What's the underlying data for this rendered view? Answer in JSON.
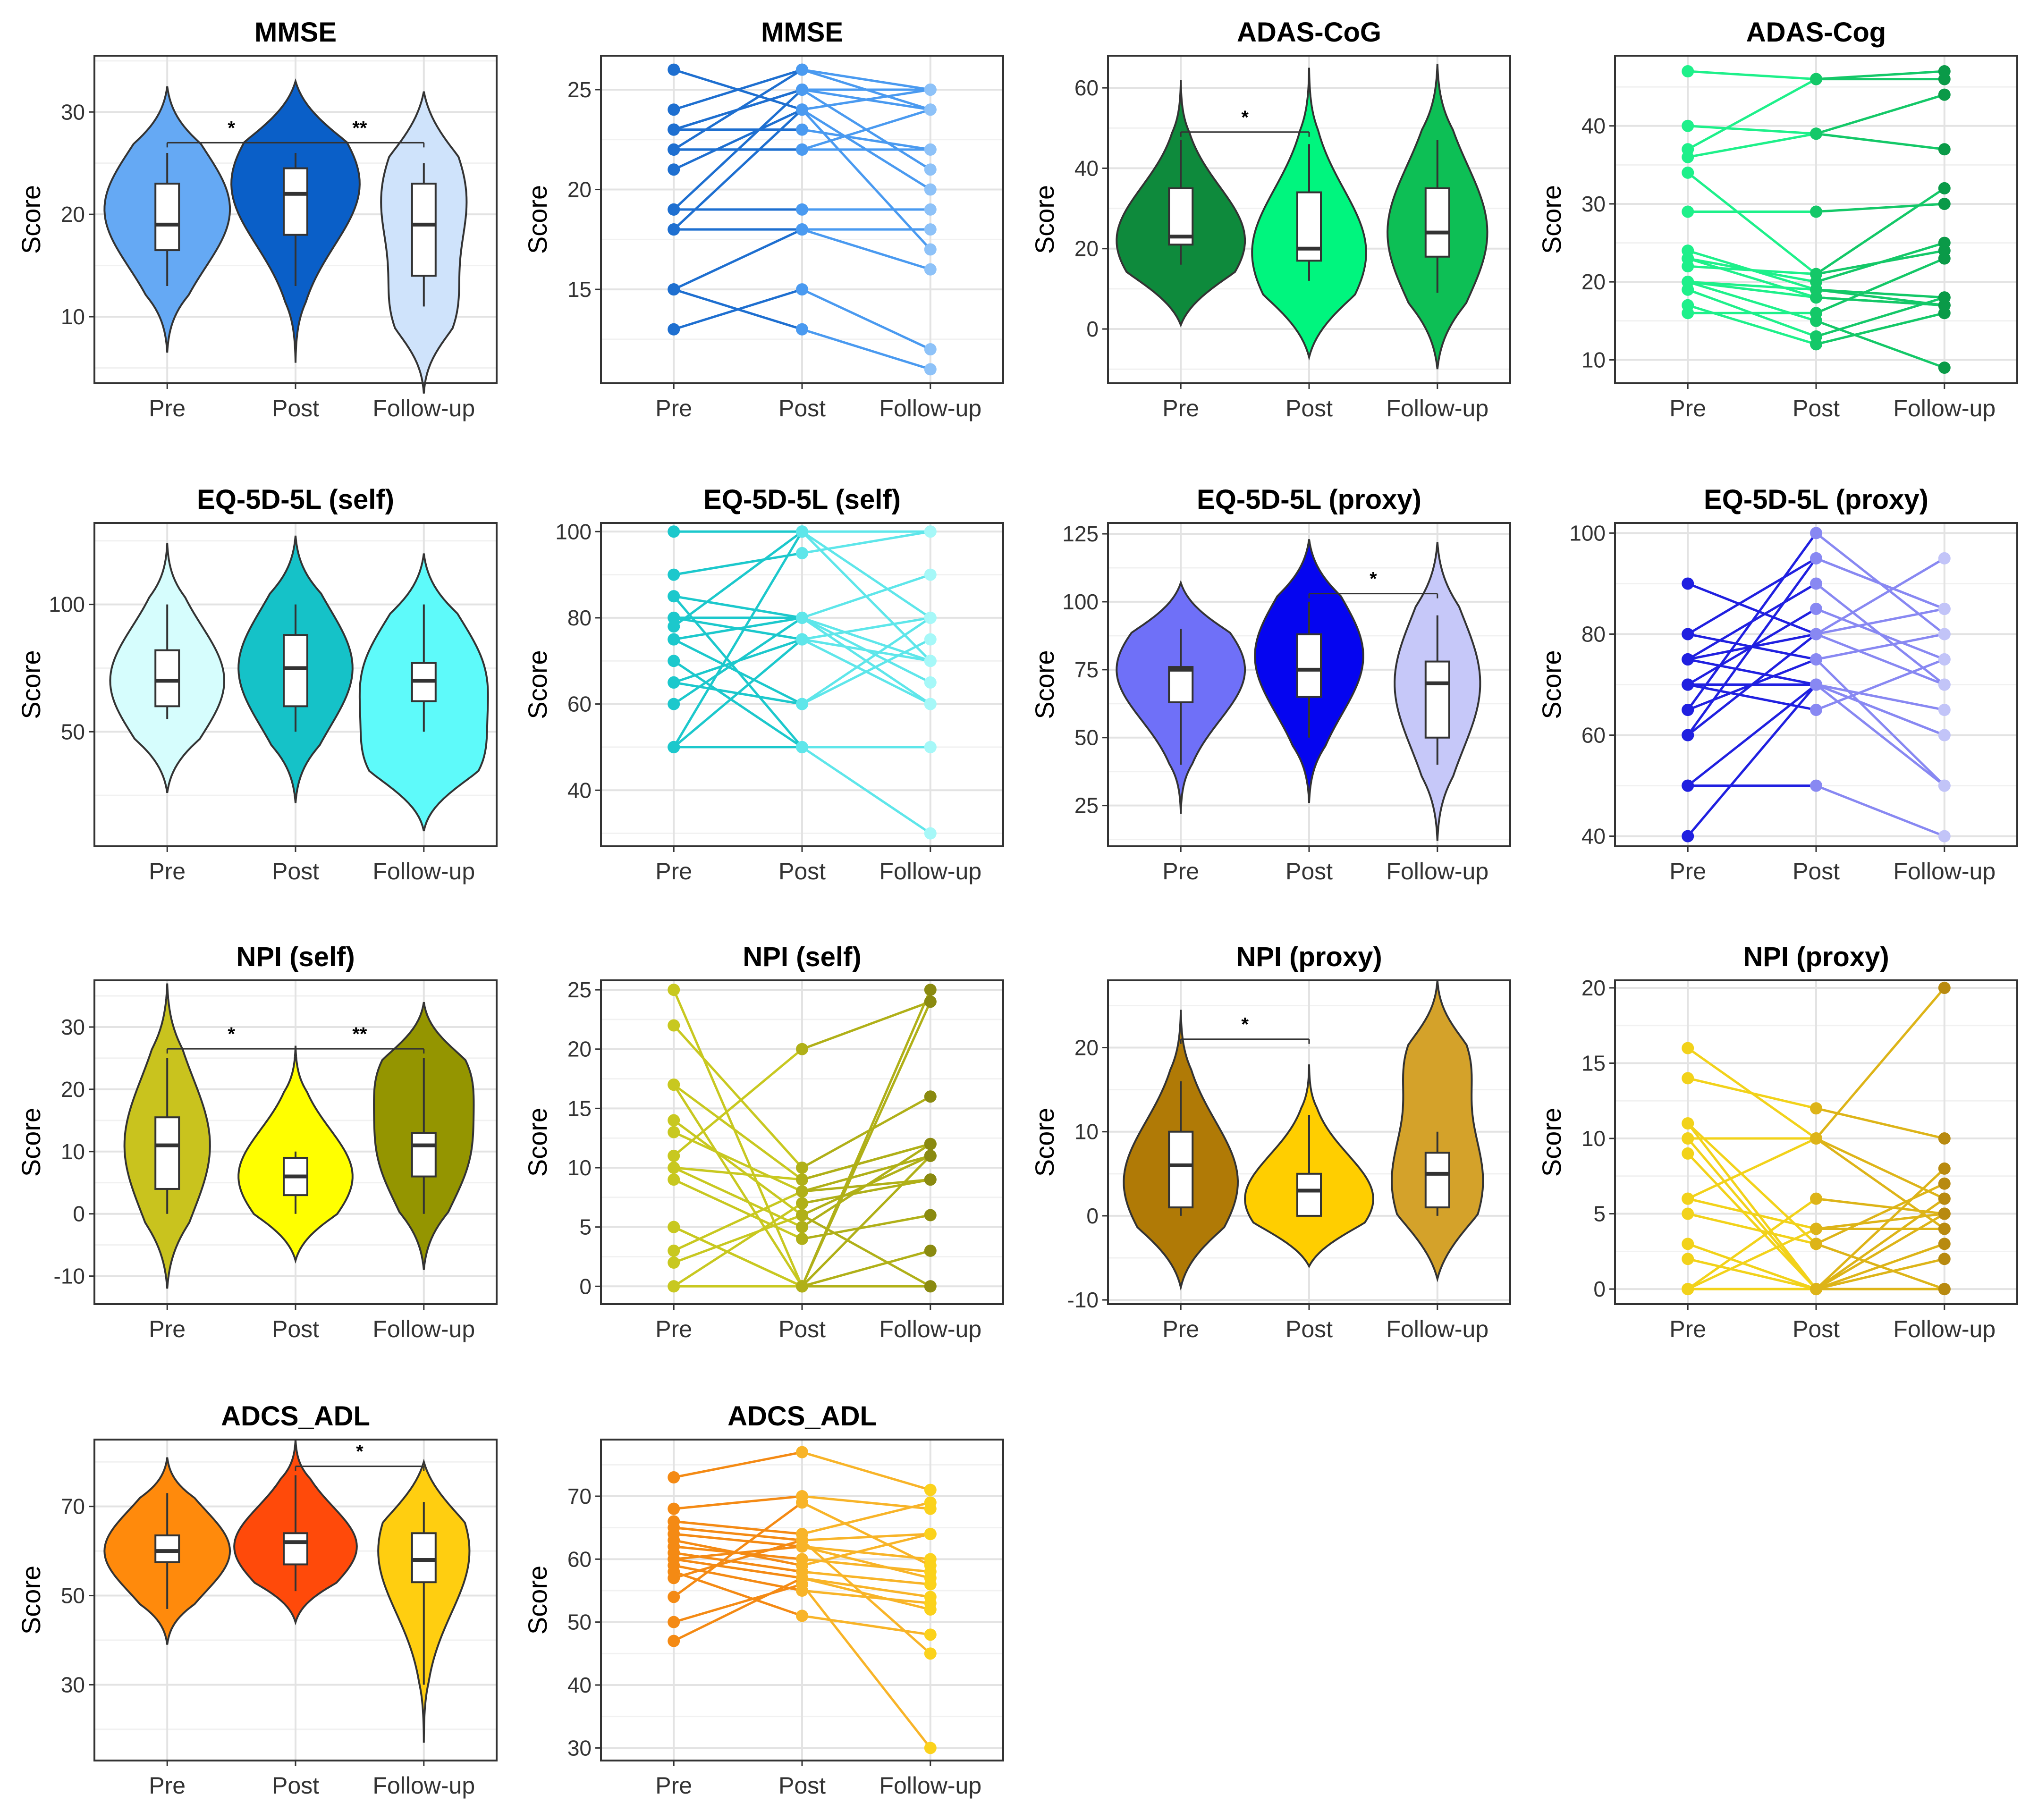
{
  "chart_data": [
    {
      "id": "mmse-violin",
      "type": "violin",
      "title": "MMSE",
      "ylabel": "Score",
      "categories": [
        "Pre",
        "Post",
        "Follow-up"
      ],
      "ylim": [
        3.5,
        35.5
      ],
      "yticks": [
        10,
        20,
        30
      ],
      "colors": [
        "#65A9F4",
        "#0A5FC8",
        "#CFE3FB"
      ],
      "groups": [
        {
          "min": 13,
          "q1": 16.5,
          "median": 19,
          "q3": 23,
          "max": 26,
          "lo": 6.5,
          "hi": 32.5,
          "modes": [
            20.5
          ],
          "w": 0.44
        },
        {
          "min": 13,
          "q1": 18,
          "median": 22,
          "q3": 24.5,
          "max": 26,
          "lo": 5.5,
          "hi": 33,
          "modes": [
            23
          ],
          "w": 0.45
        },
        {
          "min": 11,
          "q1": 14,
          "median": 19,
          "q3": 23,
          "max": 25,
          "lo": 2.5,
          "hi": 32,
          "modes": [
            21.5,
            10
          ],
          "w": 0.3
        }
      ],
      "signif": [
        {
          "from": 0,
          "to": 2,
          "y": 27,
          "labels": [
            {
              "text": "*",
              "at": 0.5
            },
            {
              "text": "**",
              "at": 1.5
            }
          ]
        }
      ]
    },
    {
      "id": "mmse-lines",
      "type": "line",
      "title": "MMSE",
      "ylabel": "Score",
      "categories": [
        "Pre",
        "Post",
        "Follow-up"
      ],
      "ylim": [
        10.3,
        26.7
      ],
      "yticks": [
        15,
        20,
        25
      ],
      "colors": [
        "#1E6FD0",
        "#4A9AF0",
        "#8EC2F8"
      ],
      "series": [
        [
          26,
          24,
          25
        ],
        [
          24,
          26,
          25
        ],
        [
          23,
          25,
          24
        ],
        [
          23,
          25,
          25
        ],
        [
          22,
          22,
          22
        ],
        [
          22,
          22,
          24
        ],
        [
          21,
          24,
          20
        ],
        [
          23,
          23,
          22
        ],
        [
          19,
          19,
          19
        ],
        [
          18,
          18,
          18
        ],
        [
          18,
          24,
          17
        ],
        [
          19,
          25,
          21
        ],
        [
          15,
          13,
          11
        ],
        [
          13,
          15,
          12
        ],
        [
          15,
          18,
          16
        ],
        [
          22,
          26,
          24
        ]
      ]
    },
    {
      "id": "adas-violin",
      "type": "violin",
      "title": "ADAS-CoG",
      "ylabel": "Score",
      "categories": [
        "Pre",
        "Post",
        "Follow-up"
      ],
      "ylim": [
        -13.5,
        68
      ],
      "yticks": [
        0,
        20,
        40,
        60
      ],
      "colors": [
        "#0E8A3C",
        "#00F57E",
        "#0DBF55"
      ],
      "groups": [
        {
          "min": 16,
          "q1": 21,
          "median": 23,
          "q3": 35,
          "max": 47,
          "lo": 1,
          "hi": 62,
          "modes": [
            22
          ],
          "w": 0.45
        },
        {
          "min": 12,
          "q1": 17,
          "median": 20,
          "q3": 34,
          "max": 46,
          "lo": -7,
          "hi": 65,
          "modes": [
            19
          ],
          "w": 0.4
        },
        {
          "min": 9,
          "q1": 18,
          "median": 24,
          "q3": 35,
          "max": 47,
          "lo": -10,
          "hi": 66,
          "modes": [
            24
          ],
          "w": 0.35
        }
      ],
      "signif": [
        {
          "from": 0,
          "to": 1,
          "y": 49,
          "labels": [
            {
              "text": "*",
              "at": 0.5
            }
          ]
        }
      ]
    },
    {
      "id": "adas-lines",
      "type": "line",
      "title": "ADAS-Cog",
      "ylabel": "Score",
      "categories": [
        "Pre",
        "Post",
        "Follow-up"
      ],
      "ylim": [
        7,
        49
      ],
      "yticks": [
        10,
        20,
        30,
        40
      ],
      "colors": [
        "#1EF08A",
        "#14C868",
        "#0A9A48"
      ],
      "series": [
        [
          47,
          46,
          47
        ],
        [
          40,
          39,
          37
        ],
        [
          37,
          46,
          46
        ],
        [
          36,
          39,
          44
        ],
        [
          34,
          21,
          32
        ],
        [
          29,
          29,
          30
        ],
        [
          24,
          19,
          18
        ],
        [
          23,
          20,
          25
        ],
        [
          22,
          21,
          24
        ],
        [
          20,
          18,
          17
        ],
        [
          20,
          15,
          9
        ],
        [
          19,
          13,
          18
        ],
        [
          17,
          12,
          16
        ],
        [
          16,
          16,
          23
        ],
        [
          23,
          18,
          17
        ],
        [
          20,
          19,
          17
        ]
      ]
    },
    {
      "id": "eq-self-violin",
      "type": "violin",
      "title": "EQ-5D-5L (self)",
      "ylabel": "Score",
      "categories": [
        "Pre",
        "Post",
        "Follow-up"
      ],
      "ylim": [
        5,
        132
      ],
      "yticks": [
        50,
        100
      ],
      "colors": [
        "#D6FDFD",
        "#15C2C8",
        "#5EFAFA"
      ],
      "groups": [
        {
          "min": 55,
          "q1": 60,
          "median": 70,
          "q3": 82,
          "max": 100,
          "lo": 26,
          "hi": 124,
          "modes": [
            70
          ],
          "w": 0.4
        },
        {
          "min": 50,
          "q1": 60,
          "median": 75,
          "q3": 88,
          "max": 100,
          "lo": 22,
          "hi": 127,
          "modes": [
            75
          ],
          "w": 0.4
        },
        {
          "min": 50,
          "q1": 62,
          "median": 70,
          "q3": 77,
          "max": 100,
          "lo": 11,
          "hi": 120,
          "modes": [
            70,
            35
          ],
          "w": 0.45
        }
      ],
      "signif": []
    },
    {
      "id": "eq-self-lines",
      "type": "line",
      "title": "EQ-5D-5L (self)",
      "ylabel": "Score",
      "categories": [
        "Pre",
        "Post",
        "Follow-up"
      ],
      "ylim": [
        27,
        102
      ],
      "yticks": [
        40,
        60,
        80,
        100
      ],
      "colors": [
        "#1CC8CC",
        "#5EE6EA",
        "#A6F8F8"
      ],
      "series": [
        [
          100,
          100,
          100
        ],
        [
          90,
          95,
          100
        ],
        [
          85,
          80,
          90
        ],
        [
          80,
          75,
          80
        ],
        [
          78,
          100,
          70
        ],
        [
          75,
          80,
          60
        ],
        [
          70,
          50,
          50
        ],
        [
          65,
          60,
          75
        ],
        [
          60,
          80,
          65
        ],
        [
          50,
          100,
          80
        ],
        [
          50,
          50,
          30
        ],
        [
          50,
          75,
          70
        ],
        [
          65,
          75,
          60
        ],
        [
          85,
          50,
          50
        ],
        [
          80,
          80,
          70
        ],
        [
          75,
          60,
          80
        ]
      ]
    },
    {
      "id": "eq-proxy-violin",
      "type": "violin",
      "title": "EQ-5D-5L (proxy)",
      "ylabel": "Score",
      "categories": [
        "Pre",
        "Post",
        "Follow-up"
      ],
      "ylim": [
        10,
        129
      ],
      "yticks": [
        25,
        50,
        75,
        100,
        125
      ],
      "colors": [
        "#6F70F8",
        "#0505F0",
        "#C6C8F9"
      ],
      "groups": [
        {
          "min": 40,
          "q1": 63,
          "median": 75,
          "q3": 76,
          "max": 90,
          "lo": 22,
          "hi": 107,
          "modes": [
            75
          ],
          "w": 0.45
        },
        {
          "min": 50,
          "q1": 65,
          "median": 75,
          "q3": 88,
          "max": 100,
          "lo": 26,
          "hi": 123,
          "modes": [
            80
          ],
          "w": 0.38
        },
        {
          "min": 40,
          "q1": 50,
          "median": 70,
          "q3": 78,
          "max": 95,
          "lo": 12,
          "hi": 122,
          "modes": [
            70
          ],
          "w": 0.3
        }
      ],
      "signif": [
        {
          "from": 1,
          "to": 2,
          "y": 103,
          "labels": [
            {
              "text": "*",
              "at": 0.5
            }
          ]
        }
      ]
    },
    {
      "id": "eq-proxy-lines",
      "type": "line",
      "title": "EQ-5D-5L (proxy)",
      "ylabel": "Score",
      "categories": [
        "Pre",
        "Post",
        "Follow-up"
      ],
      "ylim": [
        38,
        102
      ],
      "yticks": [
        40,
        60,
        80,
        100
      ],
      "colors": [
        "#2020E0",
        "#8888F2",
        "#C2C4F8"
      ],
      "series": [
        [
          90,
          80,
          95
        ],
        [
          80,
          95,
          85
        ],
        [
          80,
          75,
          80
        ],
        [
          75,
          90,
          70
        ],
        [
          75,
          70,
          60
        ],
        [
          70,
          70,
          65
        ],
        [
          70,
          85,
          75
        ],
        [
          65,
          100,
          80
        ],
        [
          60,
          95,
          85
        ],
        [
          60,
          80,
          70
        ],
        [
          50,
          50,
          40
        ],
        [
          40,
          70,
          50
        ],
        [
          65,
          75,
          50
        ],
        [
          70,
          65,
          75
        ],
        [
          50,
          70,
          60
        ],
        [
          75,
          80,
          85
        ]
      ]
    },
    {
      "id": "npi-self-violin",
      "type": "violin",
      "title": "NPI (self)",
      "ylabel": "Score",
      "categories": [
        "Pre",
        "Post",
        "Follow-up"
      ],
      "ylim": [
        -14.5,
        37.5
      ],
      "yticks": [
        -10,
        0,
        10,
        20,
        30
      ],
      "colors": [
        "#C9C31E",
        "#FFFF00",
        "#949500"
      ],
      "groups": [
        {
          "min": 0,
          "q1": 4,
          "median": 11,
          "q3": 15.5,
          "max": 25,
          "lo": -12,
          "hi": 37,
          "modes": [
            11
          ],
          "w": 0.3
        },
        {
          "min": 0,
          "q1": 3,
          "median": 6,
          "q3": 9,
          "max": 10,
          "lo": -7.5,
          "hi": 27,
          "modes": [
            6
          ],
          "w": 0.4
        },
        {
          "min": 0,
          "q1": 6,
          "median": 11,
          "q3": 13,
          "max": 25,
          "lo": -9,
          "hi": 34,
          "modes": [
            11,
            24
          ],
          "w": 0.35
        }
      ],
      "signif": [
        {
          "from": 0,
          "to": 2,
          "y": 26.5,
          "labels": [
            {
              "text": "*",
              "at": 0.5
            },
            {
              "text": "**",
              "at": 1.5
            }
          ]
        }
      ]
    },
    {
      "id": "npi-self-lines",
      "type": "line",
      "title": "NPI (self)",
      "ylabel": "Score",
      "categories": [
        "Pre",
        "Post",
        "Follow-up"
      ],
      "ylim": [
        -1.5,
        25.8
      ],
      "yticks": [
        0,
        5,
        10,
        15,
        20,
        25
      ],
      "colors": [
        "#C8C820",
        "#B0B018",
        "#8A8A10"
      ],
      "series": [
        [
          25,
          0,
          24
        ],
        [
          22,
          10,
          16
        ],
        [
          17,
          9,
          12
        ],
        [
          17,
          0,
          25
        ],
        [
          14,
          6,
          11
        ],
        [
          13,
          8,
          9
        ],
        [
          11,
          20,
          24
        ],
        [
          10,
          5,
          12
        ],
        [
          9,
          4,
          6
        ],
        [
          5,
          0,
          3
        ],
        [
          3,
          8,
          11
        ],
        [
          2,
          6,
          0
        ],
        [
          0,
          0,
          0
        ],
        [
          0,
          7,
          9
        ],
        [
          5,
          0,
          11
        ],
        [
          10,
          9,
          12
        ]
      ]
    },
    {
      "id": "npi-proxy-violin",
      "type": "violin",
      "title": "NPI (proxy)",
      "ylabel": "Score",
      "categories": [
        "Pre",
        "Post",
        "Follow-up"
      ],
      "ylim": [
        -10.5,
        28
      ],
      "yticks": [
        -10,
        0,
        10,
        20
      ],
      "colors": [
        "#B07A06",
        "#FFCE00",
        "#D4A22A"
      ],
      "groups": [
        {
          "min": 0,
          "q1": 1,
          "median": 6,
          "q3": 10,
          "max": 16,
          "lo": -8.5,
          "hi": 24.5,
          "modes": [
            4
          ],
          "w": 0.4
        },
        {
          "min": 0,
          "q1": 0,
          "median": 3,
          "q3": 5,
          "max": 12,
          "lo": -6,
          "hi": 18,
          "modes": [
            2
          ],
          "w": 0.45
        },
        {
          "min": 0,
          "q1": 1,
          "median": 5,
          "q3": 7.5,
          "max": 10,
          "lo": -7.5,
          "hi": 28,
          "modes": [
            4,
            19
          ],
          "w": 0.32
        }
      ],
      "signif": [
        {
          "from": 0,
          "to": 1,
          "y": 21,
          "labels": [
            {
              "text": "*",
              "at": 0.5
            }
          ]
        }
      ]
    },
    {
      "id": "npi-proxy-lines",
      "type": "line",
      "title": "NPI (proxy)",
      "ylabel": "Score",
      "categories": [
        "Pre",
        "Post",
        "Follow-up"
      ],
      "ylim": [
        -1,
        20.5
      ],
      "yticks": [
        0,
        5,
        10,
        15,
        20
      ],
      "colors": [
        "#F2D21A",
        "#DDB418",
        "#B88A10"
      ],
      "series": [
        [
          16,
          10,
          20
        ],
        [
          14,
          12,
          10
        ],
        [
          11,
          0,
          8
        ],
        [
          10,
          10,
          6
        ],
        [
          9,
          0,
          0
        ],
        [
          6,
          4,
          5
        ],
        [
          6,
          10,
          4
        ],
        [
          5,
          3,
          7
        ],
        [
          3,
          0,
          3
        ],
        [
          2,
          0,
          2
        ],
        [
          0,
          0,
          0
        ],
        [
          0,
          6,
          5
        ],
        [
          0,
          4,
          4
        ],
        [
          0,
          0,
          6
        ],
        [
          11,
          3,
          0
        ],
        [
          10,
          0,
          5
        ]
      ]
    },
    {
      "id": "adcs-violin",
      "type": "violin",
      "title": "ADCS_ADL",
      "ylabel": "Score",
      "categories": [
        "Pre",
        "Post",
        "Follow-up"
      ],
      "ylim": [
        13,
        85
      ],
      "yticks": [
        30,
        50,
        70
      ],
      "colors": [
        "#FF8A0C",
        "#FF4A0A",
        "#FFCE10"
      ],
      "groups": [
        {
          "min": 47,
          "q1": 57.5,
          "median": 60,
          "q3": 63.5,
          "max": 73,
          "lo": 39,
          "hi": 81,
          "modes": [
            60
          ],
          "w": 0.44
        },
        {
          "min": 51,
          "q1": 57,
          "median": 62,
          "q3": 64,
          "max": 77,
          "lo": 44,
          "hi": 85,
          "modes": [
            61
          ],
          "w": 0.43
        },
        {
          "min": 30,
          "q1": 53,
          "median": 58,
          "q3": 64,
          "max": 71,
          "lo": 17,
          "hi": 80,
          "modes": [
            60
          ],
          "w": 0.32
        }
      ],
      "signif": [
        {
          "from": 1,
          "to": 2,
          "y": 79,
          "labels": [
            {
              "text": "*",
              "at": 0.5
            }
          ]
        }
      ]
    },
    {
      "id": "adcs-lines",
      "type": "line",
      "title": "ADCS_ADL",
      "ylabel": "Score",
      "categories": [
        "Pre",
        "Post",
        "Follow-up"
      ],
      "ylim": [
        28,
        79
      ],
      "yticks": [
        30,
        40,
        50,
        60,
        70
      ],
      "colors": [
        "#F48A14",
        "#F8B428",
        "#FBD21C"
      ],
      "series": [
        [
          73,
          77,
          71
        ],
        [
          68,
          70,
          68
        ],
        [
          66,
          64,
          69
        ],
        [
          65,
          63,
          64
        ],
        [
          64,
          62,
          60
        ],
        [
          62,
          60,
          58
        ],
        [
          61,
          58,
          56
        ],
        [
          60,
          57,
          54
        ],
        [
          59,
          55,
          53
        ],
        [
          58,
          51,
          48
        ],
        [
          57,
          63,
          45
        ],
        [
          54,
          69,
          59
        ],
        [
          50,
          56,
          30
        ],
        [
          47,
          57,
          52
        ],
        [
          63,
          59,
          64
        ],
        [
          60,
          62,
          57
        ]
      ]
    }
  ]
}
